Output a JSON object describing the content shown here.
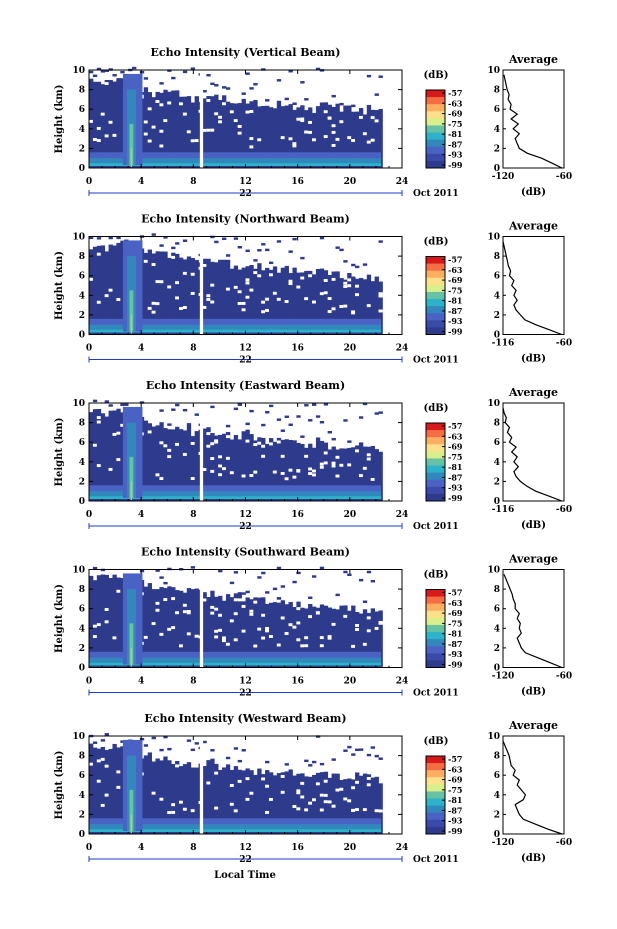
{
  "figure": {
    "xlabel": "Local Time",
    "day_label": "22",
    "month_label": "Oct 2011",
    "colorbar_unit": "(dB)",
    "colorbar_ticks": [
      "-57",
      "-63",
      "-69",
      "-75",
      "-81",
      "-87",
      "-93",
      "-99"
    ],
    "colorbar_colors": [
      "#d7191c",
      "#f46d43",
      "#fdae61",
      "#fee08b",
      "#d9ef8b",
      "#66c2a5",
      "#2cb3c9",
      "#3288bd",
      "#4a62c4",
      "#3a4aa8",
      "#2e3a8c"
    ],
    "background_color": "#2e3a8c",
    "avg_title": "Average",
    "avg_xlabel": "(dB)"
  },
  "chart_data": [
    {
      "type": "heatmap",
      "title": "Echo Intensity (Vertical Beam)",
      "ylabel": "Height (km)",
      "xlim": [
        0,
        24
      ],
      "ylim": [
        0,
        10
      ],
      "x_ticks": [
        0,
        4,
        8,
        12,
        16,
        20,
        24
      ],
      "y_ticks": [
        0,
        2,
        4,
        6,
        8,
        10
      ],
      "data_gap_hours": 8.6,
      "cloud_top_km": [
        8.8,
        8.9,
        9.0,
        8.7,
        8.0,
        7.6,
        7.8,
        7.2,
        7.0,
        7.4,
        7.1,
        6.8,
        6.9,
        6.6,
        6.4,
        6.7,
        6.3,
        6.0,
        6.5,
        6.2,
        6.0,
        5.8,
        6.1,
        5.9,
        5.6
      ],
      "average": {
        "xlim": [
          -120,
          -60
        ],
        "x_ticks": [
          -120,
          -60
        ],
        "y_ticks": [
          0,
          2,
          4,
          6,
          8,
          10
        ],
        "height_km": [
          0,
          0.5,
          1,
          1.5,
          2,
          2.5,
          3,
          3.5,
          4,
          4.5,
          5,
          5.5,
          6,
          6.5,
          7,
          7.5,
          8,
          8.5,
          9,
          9.5
        ],
        "db": [
          -62,
          -72,
          -82,
          -96,
          -104,
          -106,
          -108,
          -104,
          -110,
          -105,
          -112,
          -106,
          -113,
          -112,
          -115,
          -114,
          -116,
          -117,
          -118,
          -119
        ]
      }
    },
    {
      "type": "heatmap",
      "title": "Echo Intensity (Northward Beam)",
      "ylabel": "Height (km)",
      "xlim": [
        0,
        24
      ],
      "ylim": [
        0,
        10
      ],
      "x_ticks": [
        0,
        4,
        8,
        12,
        16,
        20,
        24
      ],
      "y_ticks": [
        0,
        2,
        4,
        6,
        8,
        10
      ],
      "data_gap_hours": 8.6,
      "cloud_top_km": [
        9.0,
        8.8,
        9.2,
        8.9,
        8.5,
        8.3,
        8.0,
        7.8,
        7.6,
        7.7,
        7.3,
        7.0,
        7.2,
        6.9,
        6.8,
        6.6,
        6.5,
        6.2,
        6.4,
        6.1,
        5.9,
        6.0,
        5.8,
        5.7,
        5.5
      ],
      "average": {
        "xlim": [
          -116,
          -60
        ],
        "x_ticks": [
          -116,
          -60
        ],
        "y_ticks": [
          0,
          2,
          4,
          6,
          8,
          10
        ],
        "height_km": [
          0,
          0.5,
          1,
          1.5,
          2,
          2.5,
          3,
          3.5,
          4,
          4.5,
          5,
          5.5,
          6,
          6.5,
          7,
          7.5,
          8,
          8.5,
          9,
          9.5
        ],
        "db": [
          -62,
          -74,
          -86,
          -96,
          -100,
          -104,
          -106,
          -103,
          -106,
          -104,
          -108,
          -106,
          -110,
          -109,
          -111,
          -112,
          -113,
          -114,
          -115,
          -116
        ]
      }
    },
    {
      "type": "heatmap",
      "title": "Echo Intensity (Eastward Beam)",
      "ylabel": "Height (km)",
      "xlim": [
        0,
        24
      ],
      "ylim": [
        0,
        10
      ],
      "x_ticks": [
        0,
        4,
        8,
        12,
        16,
        20,
        24
      ],
      "y_ticks": [
        0,
        2,
        4,
        6,
        8,
        10
      ],
      "data_gap_hours": 8.6,
      "cloud_top_km": [
        9.2,
        9.0,
        9.3,
        8.6,
        8.2,
        7.8,
        7.4,
        7.6,
        7.0,
        7.3,
        6.8,
        6.6,
        6.9,
        6.4,
        6.2,
        6.5,
        6.0,
        5.8,
        6.2,
        5.6,
        5.4,
        5.8,
        5.5,
        5.2,
        5.0
      ],
      "average": {
        "xlim": [
          -116,
          -60
        ],
        "x_ticks": [
          -116,
          -60
        ],
        "y_ticks": [
          0,
          2,
          4,
          6,
          8,
          10
        ],
        "height_km": [
          0,
          0.5,
          1,
          1.5,
          2,
          2.5,
          3,
          3.5,
          4,
          4.5,
          5,
          5.5,
          6,
          6.5,
          7,
          7.5,
          8,
          8.5,
          9,
          9.5
        ],
        "db": [
          -62,
          -74,
          -86,
          -94,
          -100,
          -104,
          -106,
          -102,
          -106,
          -103,
          -108,
          -104,
          -110,
          -108,
          -112,
          -110,
          -114,
          -113,
          -115,
          -116
        ]
      }
    },
    {
      "type": "heatmap",
      "title": "Echo Intensity (Southward Beam)",
      "ylabel": "Height (km)",
      "xlim": [
        0,
        24
      ],
      "ylim": [
        0,
        10
      ],
      "x_ticks": [
        0,
        4,
        8,
        12,
        16,
        20,
        24
      ],
      "y_ticks": [
        0,
        2,
        4,
        6,
        8,
        10
      ],
      "data_gap_hours": 8.6,
      "cloud_top_km": [
        9.3,
        9.1,
        9.2,
        8.8,
        8.6,
        8.2,
        8.0,
        7.8,
        7.7,
        7.5,
        7.2,
        7.3,
        7.0,
        6.9,
        6.7,
        6.8,
        6.5,
        6.4,
        6.2,
        6.0,
        6.1,
        5.9,
        5.8,
        5.7,
        5.5
      ],
      "average": {
        "xlim": [
          -120,
          -60
        ],
        "x_ticks": [
          -120,
          -60
        ],
        "y_ticks": [
          0,
          2,
          4,
          6,
          8,
          10
        ],
        "height_km": [
          0,
          0.5,
          1,
          1.5,
          2,
          2.5,
          3,
          3.5,
          4,
          4.5,
          5,
          5.5,
          6,
          6.5,
          7,
          7.5,
          8,
          8.5,
          9,
          9.5
        ],
        "db": [
          -62,
          -74,
          -86,
          -98,
          -102,
          -104,
          -106,
          -102,
          -104,
          -103,
          -106,
          -104,
          -108,
          -108,
          -110,
          -111,
          -113,
          -115,
          -117,
          -119
        ]
      }
    },
    {
      "type": "heatmap",
      "title": "Echo Intensity (Westward Beam)",
      "ylabel": "Height (km)",
      "xlim": [
        0,
        24
      ],
      "ylim": [
        0,
        10
      ],
      "x_ticks": [
        0,
        4,
        8,
        12,
        16,
        20,
        24
      ],
      "y_ticks": [
        0,
        2,
        4,
        6,
        8,
        10
      ],
      "data_gap_hours": 8.6,
      "cloud_top_km": [
        9.0,
        8.9,
        9.1,
        8.4,
        8.0,
        7.6,
        7.4,
        7.2,
        7.0,
        7.3,
        6.8,
        6.6,
        6.7,
        6.4,
        6.3,
        6.5,
        6.1,
        6.0,
        6.3,
        5.8,
        5.6,
        5.9,
        5.7,
        5.5,
        5.3
      ],
      "average": {
        "xlim": [
          -120,
          -60
        ],
        "x_ticks": [
          -120,
          -60
        ],
        "y_ticks": [
          0,
          2,
          4,
          6,
          8,
          10
        ],
        "height_km": [
          0,
          0.5,
          1,
          1.5,
          2,
          2.5,
          3,
          3.5,
          4,
          4.5,
          5,
          5.5,
          6,
          6.5,
          7,
          7.5,
          8,
          8.5,
          9,
          9.5
        ],
        "db": [
          -62,
          -76,
          -88,
          -100,
          -104,
          -106,
          -108,
          -100,
          -98,
          -102,
          -106,
          -104,
          -110,
          -108,
          -112,
          -113,
          -114,
          -116,
          -118,
          -120
        ]
      }
    }
  ]
}
